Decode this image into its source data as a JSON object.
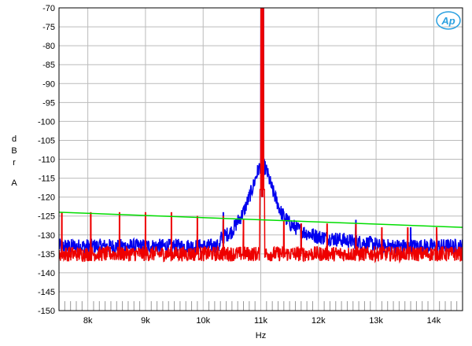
{
  "chart_data": {
    "type": "line",
    "title": "",
    "xlabel": "Hz",
    "ylabel_letters": [
      "d",
      "B",
      "r",
      "A"
    ],
    "xlim": [
      7500,
      14500
    ],
    "ylim": [
      -150,
      -70
    ],
    "y_ticks": [
      -70,
      -75,
      -80,
      -85,
      -90,
      -95,
      -100,
      -105,
      -110,
      -115,
      -120,
      -125,
      -130,
      -135,
      -140,
      -145,
      -150
    ],
    "x_ticks": [
      {
        "value": 8000,
        "label": "8k"
      },
      {
        "value": 9000,
        "label": "9k"
      },
      {
        "value": 10000,
        "label": "10k"
      },
      {
        "value": 11000,
        "label": "11k"
      },
      {
        "value": 12000,
        "label": "12k"
      },
      {
        "value": 13000,
        "label": "13k"
      },
      {
        "value": 14000,
        "label": "14k"
      }
    ],
    "grid": true,
    "logo": "Ap",
    "series": [
      {
        "color": "#0000ee",
        "floor": -133,
        "peak_x": 11025,
        "peak_y": -70,
        "skirt": [
          [
            10300,
            -131
          ],
          [
            10500,
            -129
          ],
          [
            10700,
            -124
          ],
          [
            10850,
            -118
          ],
          [
            10950,
            -113
          ],
          [
            11025,
            -111
          ],
          [
            11100,
            -113
          ],
          [
            11200,
            -118
          ],
          [
            11350,
            -124
          ],
          [
            11500,
            -127
          ],
          [
            11700,
            -129
          ],
          [
            12000,
            -130.5
          ],
          [
            12500,
            -131.5
          ],
          [
            13000,
            -132.5
          ]
        ],
        "spurs": [
          [
            10350,
            -124
          ],
          [
            11700,
            -127
          ],
          [
            12650,
            -126
          ],
          [
            13600,
            -128
          ],
          [
            14050,
            -129
          ]
        ]
      },
      {
        "color": "#ee0000",
        "floor": -135,
        "peak_x": 11025,
        "peak_y": -70,
        "spurs": [
          [
            7550,
            -124
          ],
          [
            8050,
            -124
          ],
          [
            8550,
            -124
          ],
          [
            9000,
            -124
          ],
          [
            9450,
            -124
          ],
          [
            9900,
            -125
          ],
          [
            10350,
            -125
          ],
          [
            10700,
            -126
          ],
          [
            11400,
            -126
          ],
          [
            11700,
            -127
          ],
          [
            12150,
            -127
          ],
          [
            12650,
            -127
          ],
          [
            13100,
            -128
          ],
          [
            13550,
            -128
          ],
          [
            14050,
            -128
          ]
        ]
      },
      {
        "color": "#00dd00",
        "x": [
          7500,
          14500
        ],
        "values": [
          -124,
          -128
        ]
      }
    ]
  }
}
